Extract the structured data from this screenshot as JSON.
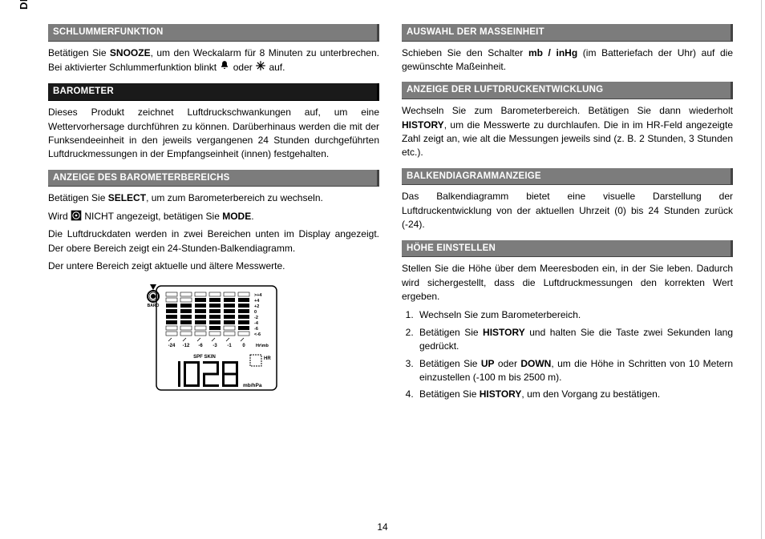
{
  "lang": "DE",
  "pageNumber": "14",
  "left": {
    "h1": "SCHLUMMERFUNKTION",
    "p1a": "Betätigen Sie ",
    "p1b": "SNOOZE",
    "p1c": ", um den Weckalarm für 8 Minuten zu unterbrechen. Bei aktivierter Schlummerfunktion blinkt ",
    "p1d": " oder ",
    "p1e": " auf.",
    "h2": "BAROMETER",
    "p2": "Dieses Produkt zeichnet Luftdruckschwankungen auf, um eine Wettervorhersage durchführen zu können. Darüberhinaus werden die mit der Funksendeeinheit in den jeweils vergangenen 24 Stunden durchgeführten Luftdruckmessungen in der Empfangseinheit (innen) festgehalten.",
    "h3": "ANZEIGE DES BAROMETERBEREICHS",
    "p3a": "Betätigen Sie ",
    "p3b": "SELECT",
    "p3c": ", um zum Barometerbereich zu wechseln.",
    "p4a": "Wird ",
    "p4b": " NICHT angezeigt, betätigen Sie ",
    "p4c": "MODE",
    "p4d": ".",
    "p5": "Die Luftdruckdaten werden in zwei Bereichen unten im Display angezeigt. Der obere Bereich zeigt ein  24-Stunden-Balkendiagramm.",
    "p6": "Der untere Bereich zeigt aktuelle und ältere Messwerte."
  },
  "right": {
    "h1": "AUSWAHL DER MASSEINHEIT",
    "p1a": "Schieben Sie den Schalter ",
    "p1b": "mb / inHg",
    "p1c": " (im Batteriefach der Uhr) auf die gewünschte Maßeinheit.",
    "h2": "ANZEIGE DER LUFTDRUCKENTWICKLUNG",
    "p2a": "Wechseln Sie zum Barometerbereich. Betätigen Sie dann wiederholt ",
    "p2b": "HISTORY",
    "p2c": ", um die Messwerte zu durchlaufen. Die in im HR-Feld angezeigte Zahl zeigt an, wie alt die Messungen jeweils sind (z. B. 2 Stunden, 3 Stunden etc.).",
    "h3": "BALKENDIAGRAMMANZEIGE",
    "p3": "Das Balkendiagramm bietet eine visuelle Darstellung der Luftdruckentwicklung von der aktuellen Uhrzeit (0) bis 24 Stunden zurück (-24).",
    "h4": "HÖHE EINSTELLEN",
    "p4": "Stellen Sie die Höhe über dem Meeresboden ein, in der Sie leben. Dadurch wird sichergestellt, dass die Luftdruckmessungen den korrekten Wert ergeben.",
    "li1": "Wechseln Sie zum Barometerbereich.",
    "li2a": "Betätigen Sie ",
    "li2b": "HISTORY",
    "li2c": " und halten Sie die Taste zwei Sekunden lang gedrückt.",
    "li3a": "Betätigen Sie ",
    "li3b": "UP",
    "li3c": " oder ",
    "li3d": "DOWN",
    "li3e": ", um die Höhe in Schritten von 10 Metern einzustellen (-100 m bis 2500 m).",
    "li4a": "Betätigen Sie ",
    "li4b": "HISTORY",
    "li4c": ", um den Vorgang zu bestätigen."
  },
  "figure": {
    "baroLabel": "BARO",
    "xTicks": [
      "-24",
      "-12",
      "-6",
      "-3",
      "-1",
      "0"
    ],
    "yTicks": [
      ">+4",
      "+4",
      "+2",
      "0",
      "-2",
      "-4",
      "-6",
      "<-6"
    ],
    "xAxisLabel": "Hr\\mb",
    "spfSkin": "SPF SKIN",
    "hr": "HR",
    "digits": "1028",
    "unit": "mb/hPa",
    "barColumns": [
      [
        0,
        0,
        1,
        1,
        1,
        1,
        0,
        0
      ],
      [
        0,
        0,
        1,
        1,
        1,
        1,
        0,
        0
      ],
      [
        0,
        1,
        1,
        1,
        1,
        1,
        0,
        0
      ],
      [
        0,
        1,
        1,
        1,
        1,
        1,
        1,
        0
      ],
      [
        0,
        1,
        1,
        1,
        1,
        1,
        0,
        0
      ],
      [
        0,
        1,
        1,
        1,
        1,
        1,
        1,
        0
      ]
    ]
  }
}
